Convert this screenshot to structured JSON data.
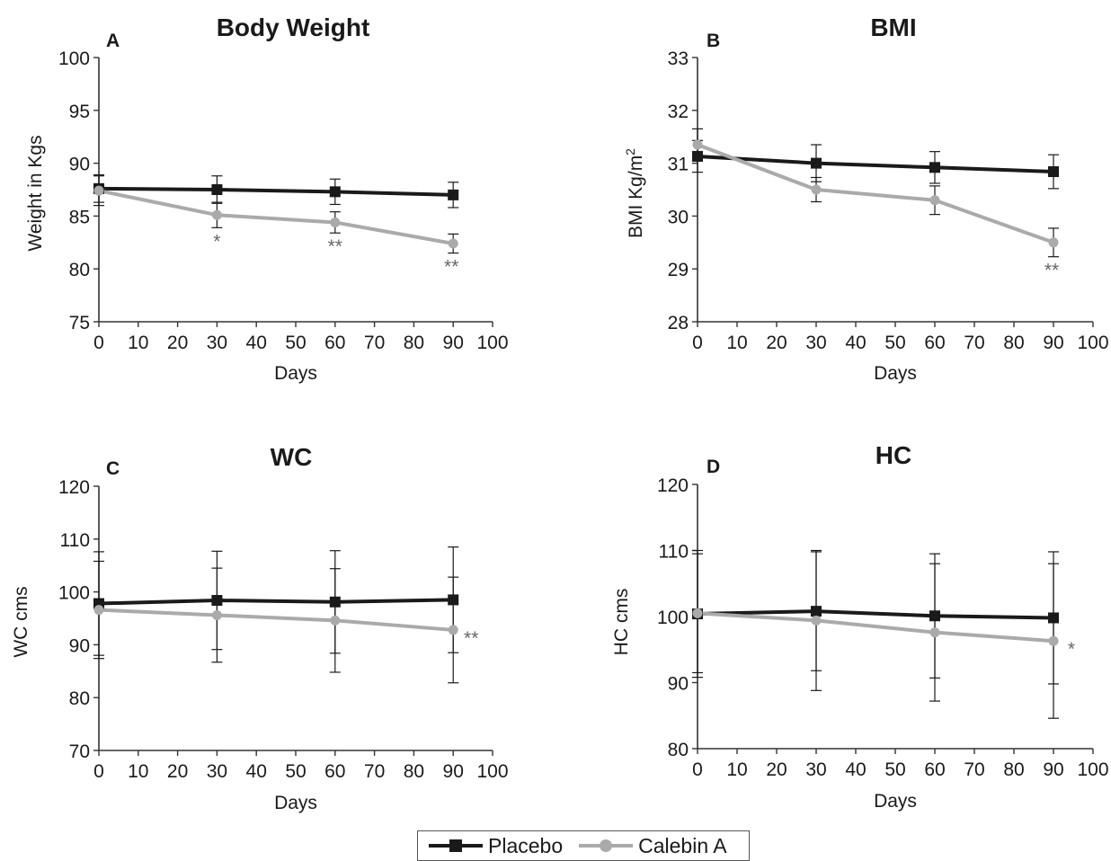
{
  "chart_data": [
    {
      "type": "line",
      "panel": "A",
      "title": "Body Weight",
      "xlabel": "Days",
      "ylabel": "Weight in Kgs",
      "xlim": [
        0,
        100
      ],
      "ylim": [
        75,
        100
      ],
      "xticks": [
        0,
        10,
        20,
        30,
        40,
        50,
        60,
        70,
        80,
        90,
        100
      ],
      "yticks": [
        75,
        80,
        85,
        90,
        95,
        100
      ],
      "x": [
        0,
        30,
        60,
        90
      ],
      "series": [
        {
          "name": "Placebo",
          "color": "#1a1a1a",
          "marker": "square",
          "values": [
            87.6,
            87.5,
            87.3,
            87.0
          ],
          "errors": [
            1.3,
            1.3,
            1.2,
            1.2
          ]
        },
        {
          "name": "Calebin A",
          "color": "#aaaaaa",
          "marker": "circle",
          "values": [
            87.4,
            85.1,
            84.4,
            82.4
          ],
          "errors": [
            1.4,
            1.2,
            1.0,
            0.9
          ]
        }
      ],
      "annotations": [
        {
          "x": 30,
          "text": "*"
        },
        {
          "x": 60,
          "text": "**"
        },
        {
          "x": 90,
          "text": "**"
        }
      ]
    },
    {
      "type": "line",
      "panel": "B",
      "title": "BMI",
      "xlabel": "Days",
      "ylabel": "BMI Kg/m",
      "ylabel_sup": "2",
      "xlim": [
        0,
        100
      ],
      "ylim": [
        28,
        33
      ],
      "xticks": [
        0,
        10,
        20,
        30,
        40,
        50,
        60,
        70,
        80,
        90,
        100
      ],
      "yticks": [
        28,
        29,
        30,
        31,
        32,
        33
      ],
      "x": [
        0,
        30,
        60,
        90
      ],
      "series": [
        {
          "name": "Placebo",
          "color": "#1a1a1a",
          "marker": "square",
          "values": [
            31.13,
            31.0,
            30.92,
            30.84
          ],
          "errors": [
            0.3,
            0.35,
            0.3,
            0.32
          ]
        },
        {
          "name": "Calebin A",
          "color": "#aaaaaa",
          "marker": "circle",
          "values": [
            31.35,
            30.5,
            30.3,
            29.5
          ],
          "errors": [
            0.3,
            0.23,
            0.27,
            0.27
          ]
        }
      ],
      "annotations": [
        {
          "x": 90,
          "text": "**"
        }
      ]
    },
    {
      "type": "line",
      "panel": "C",
      "title": "WC",
      "xlabel": "Days",
      "ylabel": "WC cms",
      "xlim": [
        0,
        100
      ],
      "ylim": [
        70,
        120
      ],
      "xticks": [
        0,
        10,
        20,
        30,
        40,
        50,
        60,
        70,
        80,
        90,
        100
      ],
      "yticks": [
        70,
        80,
        90,
        100,
        110,
        120
      ],
      "x": [
        0,
        30,
        60,
        90
      ],
      "series": [
        {
          "name": "Placebo",
          "color": "#1a1a1a",
          "marker": "square",
          "values": [
            97.8,
            98.4,
            98.1,
            98.5
          ],
          "errors": [
            9.8,
            9.3,
            9.7,
            10.0
          ]
        },
        {
          "name": "Calebin A",
          "color": "#aaaaaa",
          "marker": "circle",
          "values": [
            96.6,
            95.6,
            94.6,
            92.8
          ],
          "errors": [
            9.2,
            8.9,
            9.8,
            10.0
          ]
        }
      ],
      "annotations": [
        {
          "x": 90,
          "text": "**"
        }
      ]
    },
    {
      "type": "line",
      "panel": "D",
      "title": "HC",
      "xlabel": "Days",
      "ylabel": "HC cms",
      "xlim": [
        0,
        100
      ],
      "ylim": [
        80,
        120
      ],
      "xticks": [
        0,
        10,
        20,
        30,
        40,
        50,
        60,
        70,
        80,
        90,
        100
      ],
      "yticks": [
        80,
        90,
        100,
        110,
        120
      ],
      "x": [
        0,
        30,
        60,
        90
      ],
      "series": [
        {
          "name": "Placebo",
          "color": "#1a1a1a",
          "marker": "square",
          "values": [
            100.4,
            100.8,
            100.1,
            99.8
          ],
          "errors": [
            9.6,
            9.0,
            9.4,
            10.0
          ]
        },
        {
          "name": "Calebin A",
          "color": "#aaaaaa",
          "marker": "circle",
          "values": [
            100.5,
            99.4,
            97.6,
            96.3
          ],
          "errors": [
            9.0,
            10.6,
            10.4,
            11.7
          ]
        }
      ],
      "annotations": [
        {
          "x": 90,
          "text": "*"
        }
      ]
    }
  ],
  "legend": {
    "placement": "bottom-center",
    "items": [
      {
        "name": "Placebo",
        "color": "#1a1a1a"
      },
      {
        "name": "Calebin A",
        "color": "#aaaaaa"
      }
    ]
  }
}
